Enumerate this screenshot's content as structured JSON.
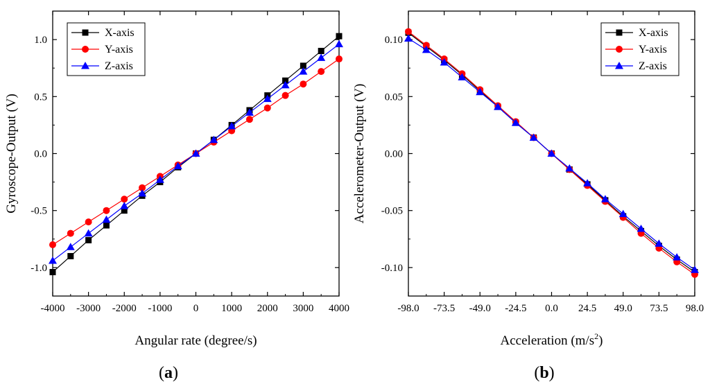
{
  "chart_data": [
    {
      "type": "line",
      "panel_label": "a",
      "title": "",
      "xlabel": "Angular rate (degree/s)",
      "ylabel": "Gyroscope-Output (V)",
      "xlim": [
        -4000,
        4000
      ],
      "ylim": [
        -1.25,
        1.25
      ],
      "xticks": [
        -4000,
        -3000,
        -2000,
        -1000,
        0,
        1000,
        2000,
        3000,
        4000
      ],
      "xtick_labels": [
        "-4000",
        "-3000",
        "-2000",
        "-1000",
        "0",
        "1000",
        "2000",
        "3000",
        "4000"
      ],
      "yticks": [
        -1.0,
        -0.5,
        0.0,
        0.5,
        1.0
      ],
      "ytick_labels": [
        "-1.0",
        "-0.5",
        "0.0",
        "0.5",
        "1.0"
      ],
      "legend_position": "top-left",
      "grid": false,
      "x": [
        -4000,
        -3500,
        -3000,
        -2500,
        -2000,
        -1500,
        -1000,
        -500,
        0,
        500,
        1000,
        1500,
        2000,
        2500,
        3000,
        3500,
        4000
      ],
      "series": [
        {
          "name": "X-axis",
          "color": "#000000",
          "marker": "square",
          "values": [
            -1.04,
            -0.9,
            -0.76,
            -0.63,
            -0.5,
            -0.37,
            -0.25,
            -0.12,
            0.0,
            0.12,
            0.25,
            0.38,
            0.51,
            0.64,
            0.77,
            0.9,
            1.03
          ]
        },
        {
          "name": "Y-axis",
          "color": "#ff0000",
          "marker": "circle",
          "values": [
            -0.8,
            -0.7,
            -0.6,
            -0.5,
            -0.4,
            -0.3,
            -0.2,
            -0.1,
            0.0,
            0.1,
            0.2,
            0.3,
            0.4,
            0.51,
            0.61,
            0.72,
            0.83
          ]
        },
        {
          "name": "Z-axis",
          "color": "#0000ff",
          "marker": "triangle",
          "values": [
            -0.94,
            -0.82,
            -0.7,
            -0.58,
            -0.46,
            -0.35,
            -0.23,
            -0.11,
            0.0,
            0.12,
            0.24,
            0.36,
            0.48,
            0.6,
            0.72,
            0.84,
            0.96
          ]
        }
      ]
    },
    {
      "type": "line",
      "panel_label": "b",
      "title": "",
      "xlabel": "Acceleration (m/s",
      "xlabel_superscript": "2",
      "xlabel_suffix": ")",
      "ylabel": "Accelerometer-Output (V)",
      "xlim": [
        -98.0,
        98.0
      ],
      "ylim": [
        -0.125,
        0.125
      ],
      "xticks": [
        -98.0,
        -73.5,
        -49.0,
        -24.5,
        0.0,
        24.5,
        49.0,
        73.5,
        98.0
      ],
      "xtick_labels": [
        "-98.0",
        "-73.5",
        "-49.0",
        "-24.5",
        "0.0",
        "24.5",
        "49.0",
        "73.5",
        "98.0"
      ],
      "yticks": [
        -0.1,
        -0.05,
        0.0,
        0.05,
        0.1
      ],
      "ytick_labels": [
        "-0.10",
        "-0.05",
        "0.00",
        "0.05",
        "0.10"
      ],
      "legend_position": "top-right",
      "grid": false,
      "x": [
        -98.0,
        -85.75,
        -73.5,
        -61.25,
        -49.0,
        -36.75,
        -24.5,
        -12.25,
        0.0,
        12.25,
        24.5,
        36.75,
        49.0,
        61.25,
        73.5,
        85.75,
        98.0
      ],
      "series": [
        {
          "name": "X-axis",
          "color": "#000000",
          "marker": "square",
          "values": [
            0.106,
            0.094,
            0.082,
            0.069,
            0.055,
            0.041,
            0.027,
            0.014,
            0.0,
            -0.014,
            -0.027,
            -0.041,
            -0.055,
            -0.068,
            -0.081,
            -0.093,
            -0.104
          ]
        },
        {
          "name": "Y-axis",
          "color": "#ff0000",
          "marker": "circle",
          "values": [
            0.107,
            0.095,
            0.083,
            0.07,
            0.056,
            0.042,
            0.028,
            0.014,
            0.0,
            -0.014,
            -0.028,
            -0.042,
            -0.056,
            -0.07,
            -0.083,
            -0.095,
            -0.106
          ]
        },
        {
          "name": "Z-axis",
          "color": "#0000ff",
          "marker": "triangle",
          "values": [
            0.101,
            0.091,
            0.08,
            0.067,
            0.054,
            0.041,
            0.027,
            0.014,
            0.0,
            -0.013,
            -0.026,
            -0.04,
            -0.053,
            -0.066,
            -0.079,
            -0.091,
            -0.102
          ]
        }
      ]
    }
  ]
}
